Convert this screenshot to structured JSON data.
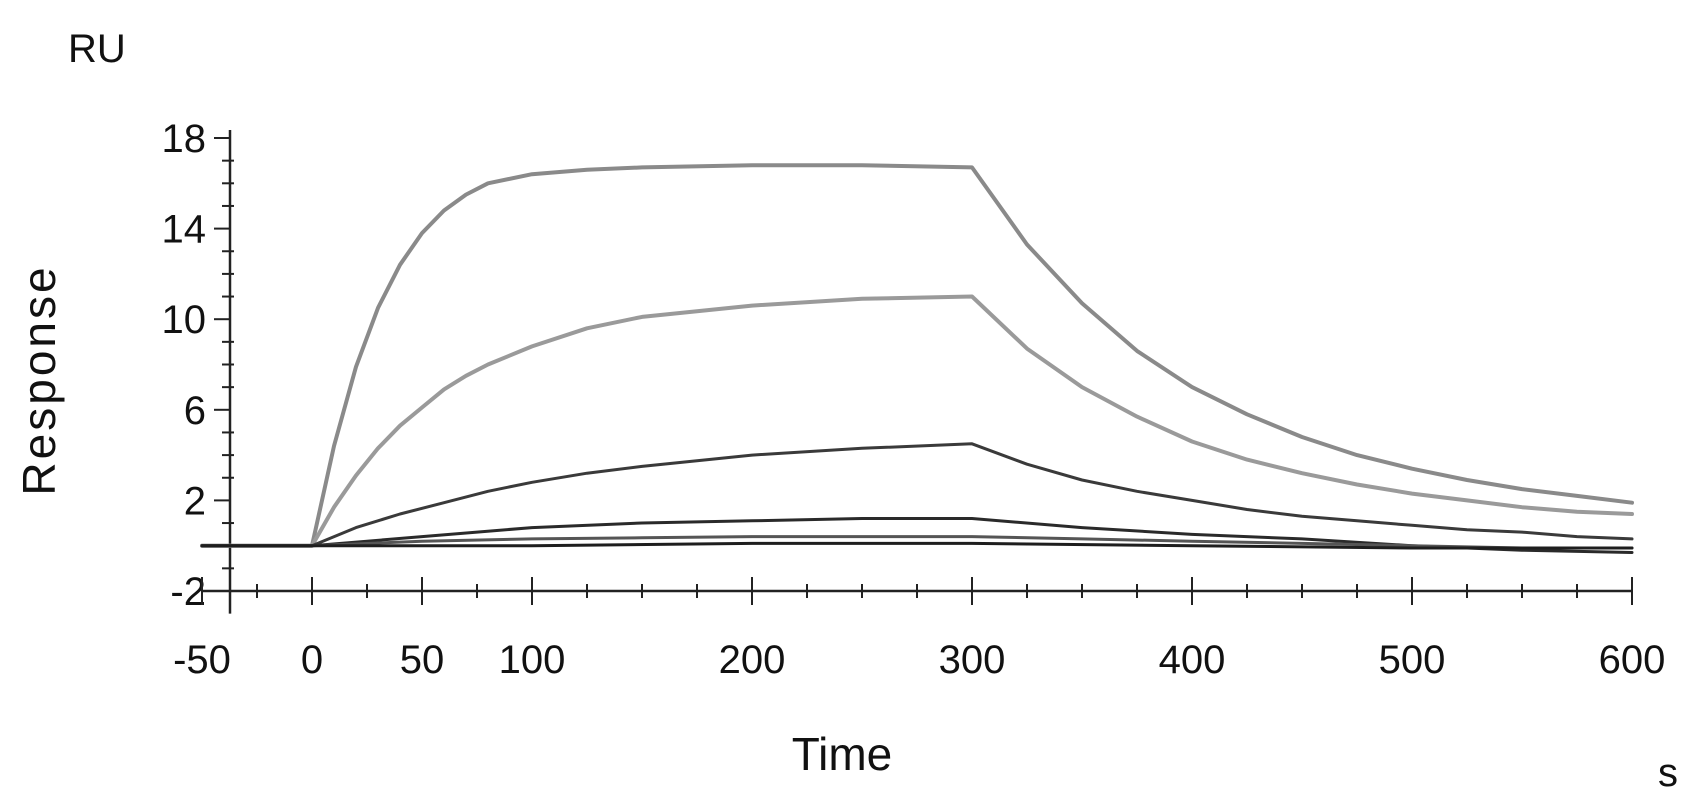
{
  "chart_data": {
    "type": "line",
    "title": "",
    "xlabel": "Time",
    "ylabel": "Response",
    "x_unit": "s",
    "y_unit": "RU",
    "xlim": [
      -50,
      600
    ],
    "ylim": [
      -3,
      18
    ],
    "x_ticks": [
      -50,
      0,
      50,
      100,
      200,
      300,
      400,
      500,
      600
    ],
    "y_ticks": [
      -2,
      2,
      6,
      10,
      14,
      18
    ],
    "grid": false,
    "legend": "none",
    "series": [
      {
        "color": "#8a8a8a",
        "x": [
          -50,
          0,
          10,
          20,
          30,
          40,
          50,
          60,
          70,
          80,
          100,
          125,
          150,
          200,
          250,
          300,
          325,
          350,
          375,
          400,
          425,
          450,
          475,
          500,
          525,
          550,
          575,
          600
        ],
        "y": [
          0,
          0,
          4.4,
          7.9,
          10.5,
          12.4,
          13.8,
          14.8,
          15.5,
          16.0,
          16.4,
          16.6,
          16.7,
          16.8,
          16.8,
          16.7,
          13.3,
          10.7,
          8.6,
          7.0,
          5.8,
          4.8,
          4.0,
          3.4,
          2.9,
          2.5,
          2.2,
          1.9
        ]
      },
      {
        "color": "#9a9a9a",
        "x": [
          -50,
          0,
          10,
          20,
          30,
          40,
          50,
          60,
          70,
          80,
          100,
          125,
          150,
          200,
          250,
          300,
          325,
          350,
          375,
          400,
          425,
          450,
          475,
          500,
          525,
          550,
          575,
          600
        ],
        "y": [
          0,
          0,
          1.7,
          3.1,
          4.3,
          5.3,
          6.1,
          6.9,
          7.5,
          8.0,
          8.8,
          9.6,
          10.1,
          10.6,
          10.9,
          11.0,
          8.7,
          7.0,
          5.7,
          4.6,
          3.8,
          3.2,
          2.7,
          2.3,
          2.0,
          1.7,
          1.5,
          1.4
        ]
      },
      {
        "color": "#3a3a3a",
        "x": [
          -50,
          0,
          20,
          40,
          60,
          80,
          100,
          125,
          150,
          200,
          250,
          300,
          325,
          350,
          375,
          400,
          425,
          450,
          475,
          500,
          525,
          550,
          575,
          600
        ],
        "y": [
          0,
          0,
          0.8,
          1.4,
          1.9,
          2.4,
          2.8,
          3.2,
          3.5,
          4.0,
          4.3,
          4.5,
          3.6,
          2.9,
          2.4,
          2.0,
          1.6,
          1.3,
          1.1,
          0.9,
          0.7,
          0.6,
          0.4,
          0.3
        ]
      },
      {
        "color": "#2a2a2a",
        "x": [
          -50,
          0,
          25,
          50,
          75,
          100,
          150,
          200,
          250,
          300,
          350,
          400,
          450,
          500,
          550,
          600
        ],
        "y": [
          0,
          0,
          0.2,
          0.4,
          0.6,
          0.8,
          1.0,
          1.1,
          1.2,
          1.2,
          0.8,
          0.5,
          0.3,
          0.0,
          -0.2,
          -0.3
        ]
      },
      {
        "color": "#555555",
        "x": [
          -50,
          0,
          50,
          100,
          150,
          200,
          250,
          300,
          350,
          400,
          450,
          500,
          550,
          600
        ],
        "y": [
          0,
          0,
          0.2,
          0.3,
          0.35,
          0.4,
          0.4,
          0.4,
          0.3,
          0.2,
          0.1,
          0.0,
          -0.1,
          -0.1
        ]
      },
      {
        "color": "#1e1e1e",
        "x": [
          -50,
          0,
          100,
          200,
          300,
          400,
          500,
          600
        ],
        "y": [
          0,
          0,
          0.0,
          0.1,
          0.1,
          0.0,
          -0.1,
          -0.1
        ]
      }
    ]
  }
}
